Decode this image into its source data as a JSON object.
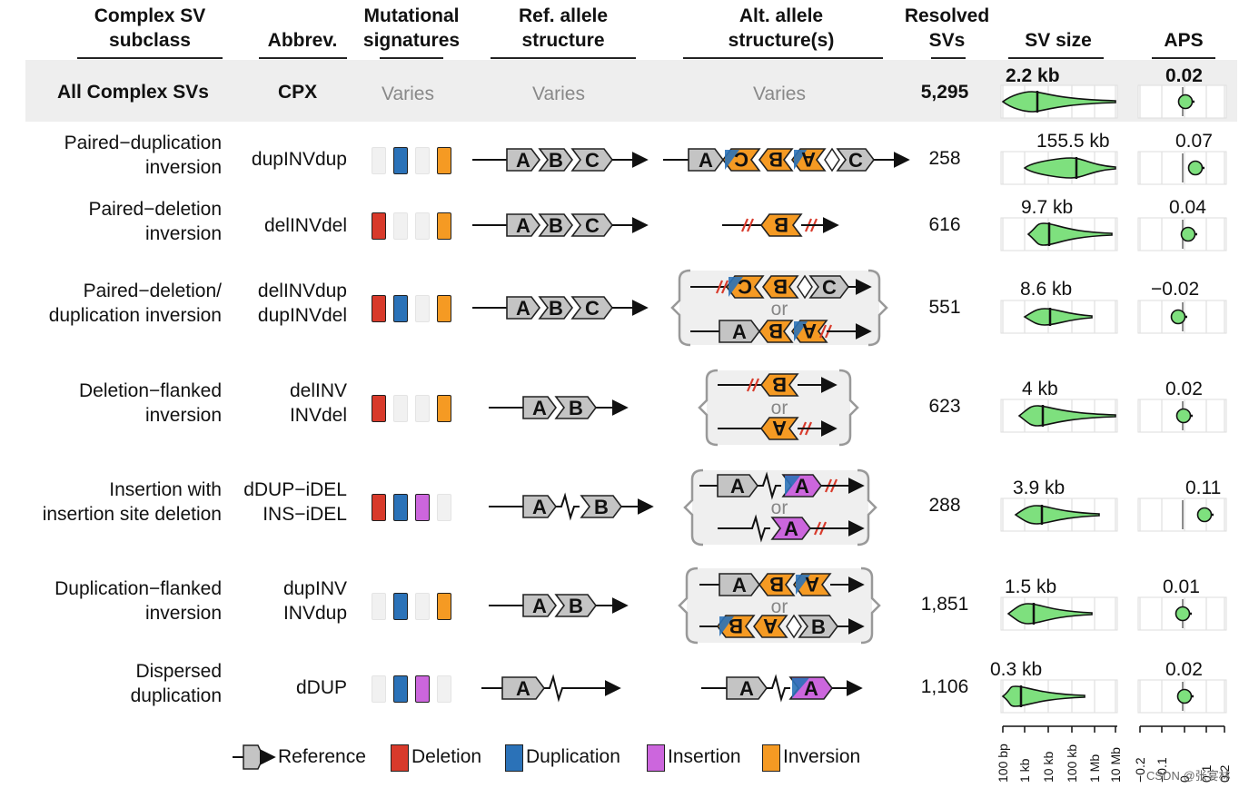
{
  "colors": {
    "deletion": "#d83a2b",
    "duplication": "#2b72b8",
    "insertion": "#cc66dd",
    "inversion": "#f59a23",
    "empty": "#f1f1f1",
    "reference": "#c4c4c4",
    "violin": "#7ee07e"
  },
  "headers": {
    "subclass": "Complex SV\nsubclass",
    "abbrev": "Abbrev.",
    "mutsig": "Mutational\nsignatures",
    "ref": "Ref. allele\nstructure",
    "alt": "Alt. allele\nstructure(s)",
    "resolved": "Resolved\nSVs",
    "size": "SV size",
    "aps": "APS"
  },
  "all_row": {
    "subclass": "All Complex SVs",
    "abbrev": "CPX",
    "mutsig": "Varies",
    "ref": "Varies",
    "alt": "Varies",
    "count": "5,295",
    "size": "2.2 kb",
    "aps": "0.02"
  },
  "rows": [
    {
      "subclass": "Paired−duplication\ninversion",
      "abbrev": "dupINVdup",
      "sig": [
        "e",
        "dup",
        "e",
        "inv"
      ],
      "count": "258",
      "size": "155.5 kb",
      "aps": "0.07"
    },
    {
      "subclass": "Paired−deletion\ninversion",
      "abbrev": "delINVdel",
      "sig": [
        "del",
        "e",
        "e",
        "inv"
      ],
      "count": "616",
      "size": "9.7 kb",
      "aps": "0.04"
    },
    {
      "subclass": "Paired−deletion/\nduplication inversion",
      "abbrev": "delINVdup\ndupINVdel",
      "sig": [
        "del",
        "dup",
        "e",
        "inv"
      ],
      "count": "551",
      "size": "8.6 kb",
      "aps": "−0.02"
    },
    {
      "subclass": "Deletion−flanked\ninversion",
      "abbrev": "delINV\nINVdel",
      "sig": [
        "del",
        "e",
        "e",
        "inv"
      ],
      "count": "623",
      "size": "4 kb",
      "aps": "0.02"
    },
    {
      "subclass": "Insertion with\ninsertion site deletion",
      "abbrev": "dDUP−iDEL\nINS−iDEL",
      "sig": [
        "del",
        "dup",
        "ins",
        "e"
      ],
      "count": "288",
      "size": "3.9 kb",
      "aps": "0.11"
    },
    {
      "subclass": "Duplication−flanked\ninversion",
      "abbrev": "dupINV\nINVdup",
      "sig": [
        "e",
        "dup",
        "e",
        "inv"
      ],
      "count": "1,851",
      "size": "1.5 kb",
      "aps": "0.01"
    },
    {
      "subclass": "Dispersed\nduplication",
      "abbrev": "dDUP",
      "sig": [
        "e",
        "dup",
        "ins",
        "e"
      ],
      "count": "1,106",
      "size": "0.3 kb",
      "aps": "0.02"
    }
  ],
  "blocks": {
    "a": "A",
    "b": "B",
    "c": "C",
    "or": "or"
  },
  "legend": {
    "reference": "Reference",
    "deletion": "Deletion",
    "duplication": "Duplication",
    "insertion": "Insertion",
    "inversion": "Inversion"
  },
  "size_axis": [
    "100 bp",
    "1 kb",
    "10 kb",
    "100 kb",
    "1 Mb",
    "10 Mb"
  ],
  "aps_axis": [
    "−0.2",
    "−0.1",
    "0",
    "0.1",
    "0.2"
  ],
  "watermark": "CSDN @张宴林"
}
